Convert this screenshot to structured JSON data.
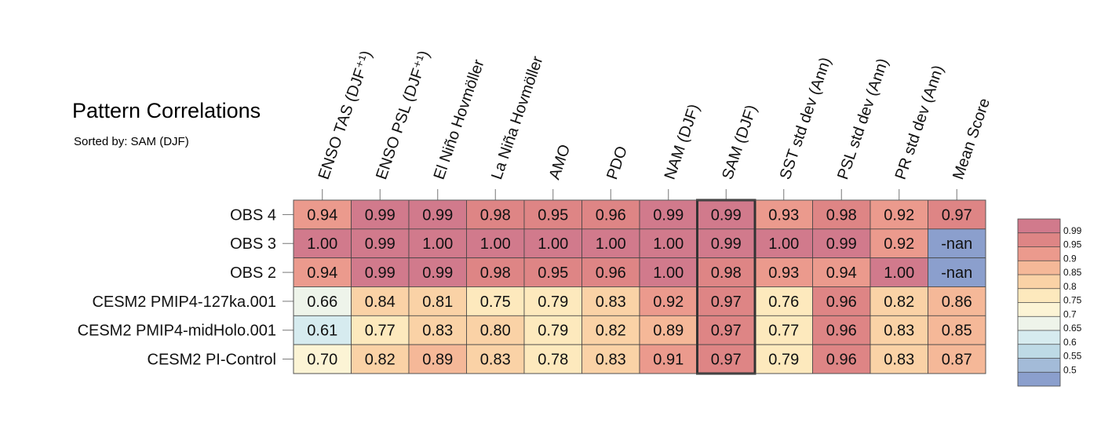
{
  "header": {
    "title": "Pattern Correlations",
    "subtitle": "Sorted by: SAM (DJF)"
  },
  "chart_data": {
    "type": "heatmap",
    "columns": [
      "ENSO TAS (DJF⁺¹)",
      "ENSO PSL (DJF⁺¹)",
      "El Niño Hovmöller",
      "La Niña Hovmöller",
      "AMO",
      "PDO",
      "NAM (DJF)",
      "SAM (DJF)",
      "SST std dev (Ann)",
      "PSL std dev (Ann)",
      "PR std dev (Ann)",
      "Mean Score"
    ],
    "rows": [
      "OBS 4",
      "OBS 3",
      "OBS 2",
      "CESM2 PMIP4-127ka.001",
      "CESM2 PMIP4-midHolo.001",
      "CESM2 PI-Control"
    ],
    "cells": [
      [
        "0.94",
        "0.99",
        "0.99",
        "0.98",
        "0.95",
        "0.96",
        "0.99",
        "0.99",
        "0.93",
        "0.98",
        "0.92",
        "0.97"
      ],
      [
        "1.00",
        "0.99",
        "1.00",
        "1.00",
        "1.00",
        "1.00",
        "1.00",
        "0.99",
        "1.00",
        "0.99",
        "0.92",
        "-nan"
      ],
      [
        "0.94",
        "0.99",
        "0.99",
        "0.98",
        "0.95",
        "0.96",
        "1.00",
        "0.98",
        "0.93",
        "0.94",
        "1.00",
        "-nan"
      ],
      [
        "0.66",
        "0.84",
        "0.81",
        "0.75",
        "0.79",
        "0.83",
        "0.92",
        "0.97",
        "0.76",
        "0.96",
        "0.82",
        "0.86"
      ],
      [
        "0.61",
        "0.77",
        "0.83",
        "0.80",
        "0.79",
        "0.82",
        "0.89",
        "0.97",
        "0.77",
        "0.96",
        "0.83",
        "0.85"
      ],
      [
        "0.70",
        "0.82",
        "0.89",
        "0.83",
        "0.78",
        "0.83",
        "0.91",
        "0.97",
        "0.79",
        "0.96",
        "0.83",
        "0.87"
      ]
    ],
    "highlighted_column": "SAM (DJF)",
    "colorbar": {
      "labels": [
        "0.99",
        "0.95",
        "0.9",
        "0.85",
        "0.8",
        "0.75",
        "0.7",
        "0.65",
        "0.6",
        "0.55",
        "0.5"
      ],
      "bins": [
        {
          "min": 0.99,
          "color": "#d17a8c"
        },
        {
          "min": 0.95,
          "color": "#de8585"
        },
        {
          "min": 0.9,
          "color": "#eb9a8d"
        },
        {
          "min": 0.85,
          "color": "#f5b898"
        },
        {
          "min": 0.8,
          "color": "#fad2a6"
        },
        {
          "min": 0.75,
          "color": "#fde9bd"
        },
        {
          "min": 0.7,
          "color": "#fcf4d5"
        },
        {
          "min": 0.65,
          "color": "#eef4ea"
        },
        {
          "min": 0.6,
          "color": "#d6ebef"
        },
        {
          "min": 0.55,
          "color": "#bedae6"
        },
        {
          "min": 0.5,
          "color": "#a3bbd8"
        },
        {
          "min": -1.0,
          "color": "#8b9fcd"
        }
      ],
      "nan_color": "#8b9fcd"
    }
  }
}
